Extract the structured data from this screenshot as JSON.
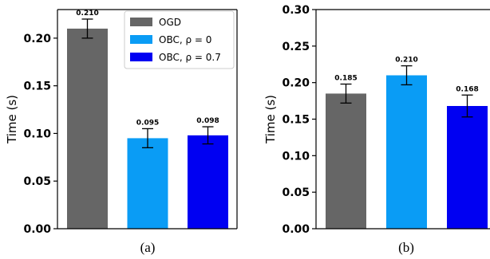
{
  "chart_data": [
    {
      "type": "bar",
      "panel_label": "(a)",
      "ylabel": "Time (s)",
      "ylim": [
        0,
        0.23
      ],
      "yticks": [
        "0.00",
        "0.05",
        "0.10",
        "0.15",
        "0.20"
      ],
      "ytick_values": [
        0.0,
        0.05,
        0.1,
        0.15,
        0.2
      ],
      "legend_position": "top-right",
      "series": [
        {
          "name": "OGD",
          "value": 0.21,
          "error": 0.01,
          "label": "0.210",
          "color": "#666666"
        },
        {
          "name": "OBC, ρ = 0",
          "value": 0.095,
          "error": 0.01,
          "label": "0.095",
          "color": "#0a9cf5"
        },
        {
          "name": "OBC, ρ = 0.7",
          "value": 0.098,
          "error": 0.009,
          "label": "0.098",
          "color": "#0000f2"
        }
      ]
    },
    {
      "type": "bar",
      "panel_label": "(b)",
      "ylabel": "Time (s)",
      "ylim": [
        0,
        0.3
      ],
      "yticks": [
        "0.00",
        "0.05",
        "0.10",
        "0.15",
        "0.20",
        "0.25",
        "0.30"
      ],
      "ytick_values": [
        0.0,
        0.05,
        0.1,
        0.15,
        0.2,
        0.25,
        0.3
      ],
      "series": [
        {
          "value": 0.185,
          "error": 0.013,
          "label": "0.185",
          "color": "#666666"
        },
        {
          "value": 0.21,
          "error": 0.013,
          "label": "0.210",
          "color": "#0a9cf5"
        },
        {
          "value": 0.168,
          "error": 0.015,
          "label": "0.168",
          "color": "#0000f2"
        }
      ]
    }
  ]
}
